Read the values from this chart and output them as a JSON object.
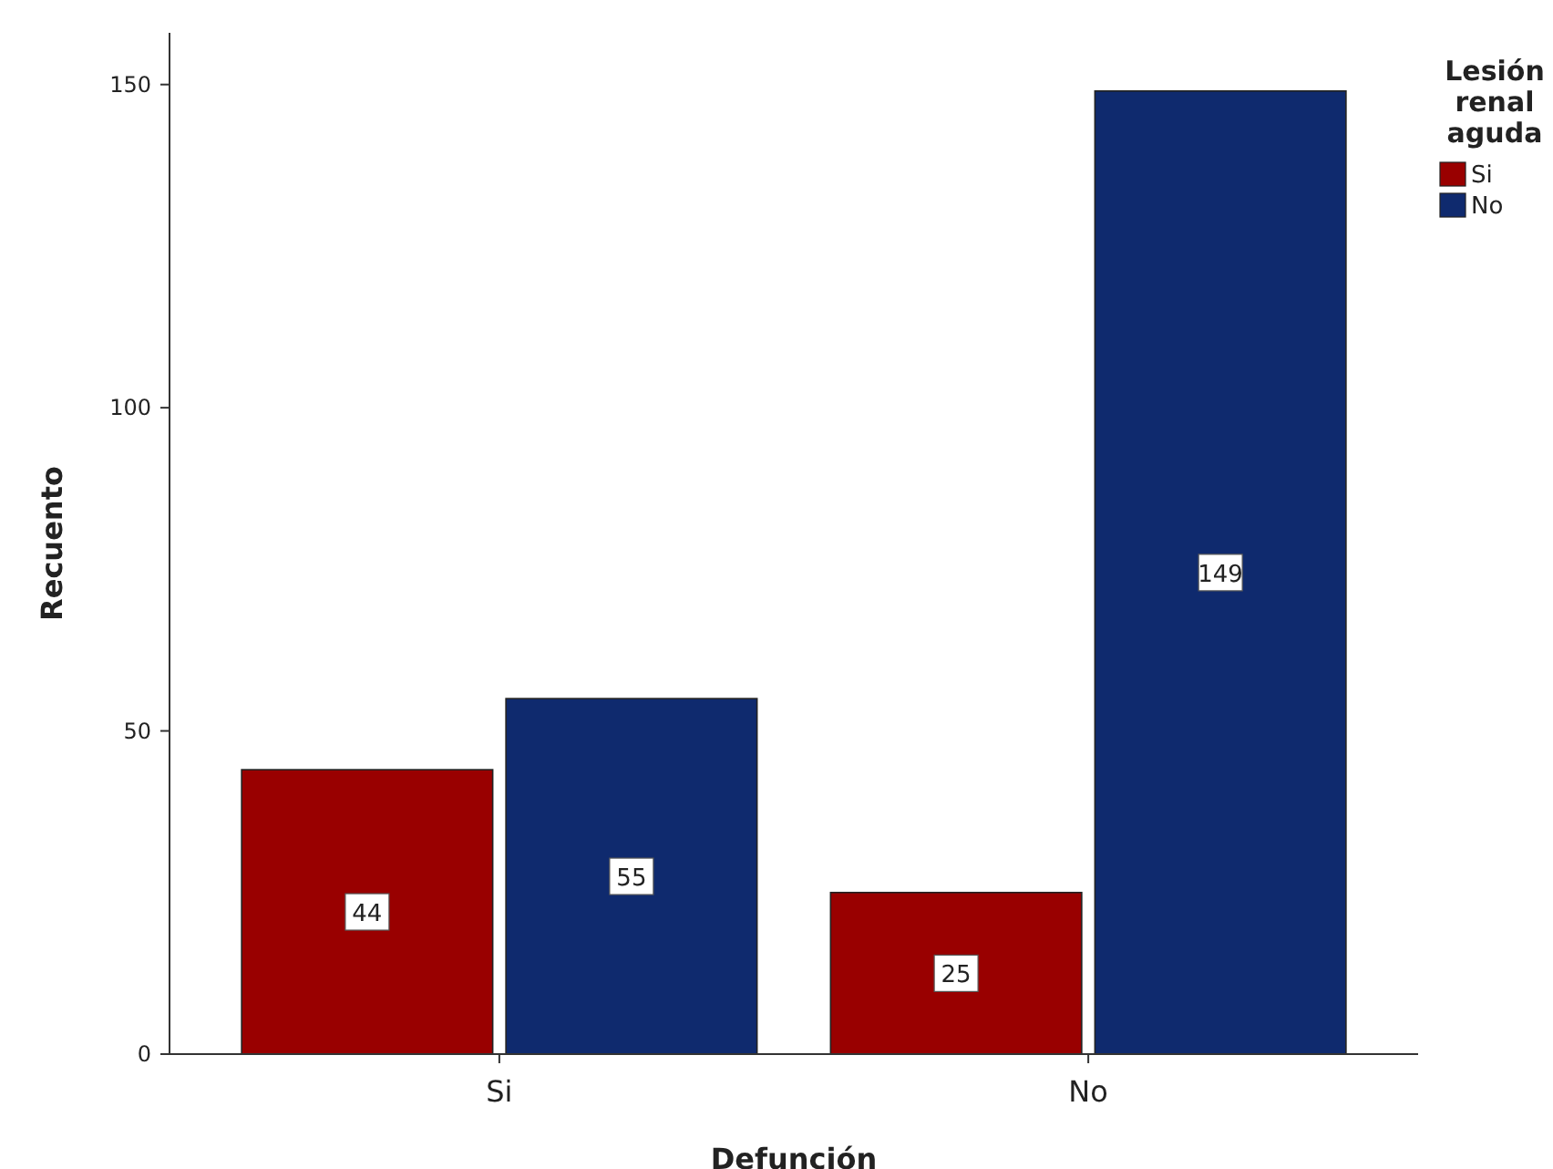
{
  "chart_data": {
    "type": "bar",
    "xlabel": "Defunción",
    "ylabel": "Recuento",
    "legend_title": "Lesión renal aguda",
    "categories": [
      "Si",
      "No"
    ],
    "series": [
      {
        "name": "Si",
        "color": "#990000",
        "values": [
          44,
          25
        ]
      },
      {
        "name": "No",
        "color": "#0f2a6e",
        "values": [
          55,
          149
        ]
      }
    ],
    "ylim": [
      0,
      158
    ],
    "yticks": [
      0,
      50,
      100,
      150
    ],
    "grid": false,
    "legend": "top right",
    "data_labels": true
  }
}
